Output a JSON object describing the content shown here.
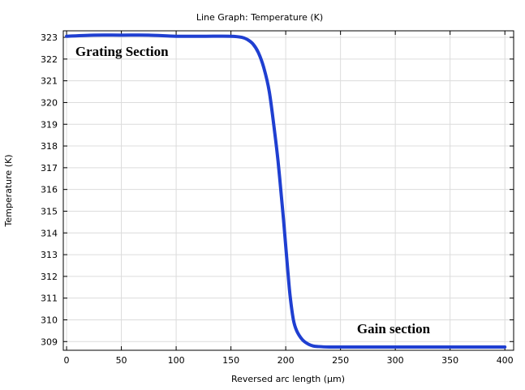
{
  "chart_data": {
    "type": "line",
    "title": "Line Graph: Temperature (K)",
    "xlabel": "Reversed arc length (µm)",
    "ylabel": "Temperature (K)",
    "xlim": [
      -3,
      408
    ],
    "ylim": [
      308.6,
      323.3
    ],
    "xticks": [
      0,
      50,
      100,
      150,
      200,
      250,
      300,
      350,
      400
    ],
    "yticks": [
      309,
      310,
      311,
      312,
      313,
      314,
      315,
      316,
      317,
      318,
      319,
      320,
      321,
      322,
      323
    ],
    "grid": true,
    "series": [
      {
        "name": "Temperature",
        "color": "#1f3fd1",
        "x": [
          0,
          25,
          50,
          75,
          100,
          125,
          150,
          160,
          165,
          170,
          175,
          180,
          185,
          190,
          193,
          196,
          198,
          200,
          202,
          204,
          207,
          210,
          215,
          220,
          225,
          230,
          240,
          250,
          275,
          300,
          325,
          350,
          375,
          400
        ],
        "y": [
          323.05,
          323.1,
          323.1,
          323.1,
          323.05,
          323.05,
          323.05,
          323.0,
          322.9,
          322.7,
          322.3,
          321.6,
          320.5,
          318.6,
          317.3,
          315.7,
          314.6,
          313.4,
          312.2,
          311.1,
          310.0,
          309.5,
          309.1,
          308.9,
          308.8,
          308.77,
          308.75,
          308.75,
          308.75,
          308.75,
          308.75,
          308.75,
          308.75,
          308.75
        ]
      }
    ],
    "annotations": [
      {
        "text": "Grating Section",
        "x": 8,
        "y": 322.15
      },
      {
        "text": "Gain section",
        "x": 265,
        "y": 309.38
      }
    ]
  }
}
